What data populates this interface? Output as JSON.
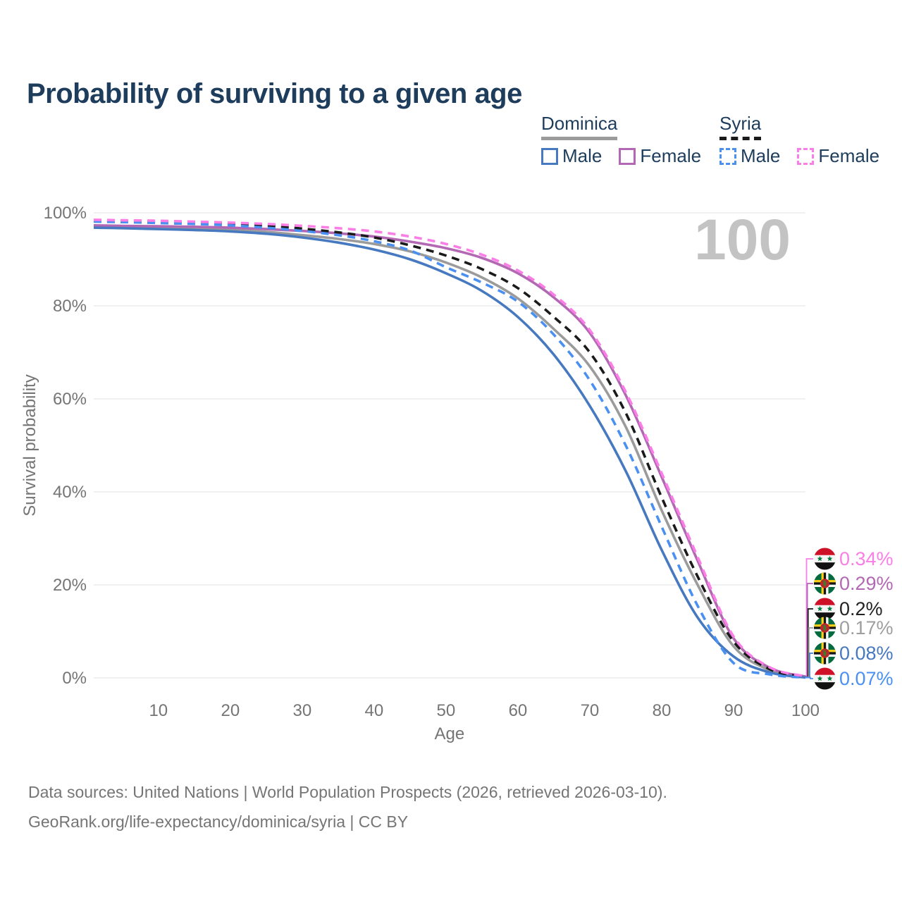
{
  "title": "Probability of surviving to a given age",
  "watermark": "100",
  "colors": {
    "title_text": "#1e3d5c",
    "axis_text": "#757575",
    "gridline": "#e8e8e8",
    "watermark": "#c3c3c3",
    "dominica_male": "#4679bf",
    "dominica_female": "#b368b4",
    "dominica_both": "#9b9b9b",
    "syria_male": "#4a90f2",
    "syria_female": "#fb7de6",
    "syria_both": "#1a1a1a"
  },
  "legend": {
    "groups": [
      {
        "name": "Dominica",
        "line_style": "solid",
        "underline_color": "#9b9b9b",
        "items": [
          {
            "label": "Male",
            "color": "#4679bf",
            "dash": false
          },
          {
            "label": "Female",
            "color": "#b368b4",
            "dash": false
          }
        ]
      },
      {
        "name": "Syria",
        "line_style": "dashed",
        "underline_color": "#1a1a1a",
        "items": [
          {
            "label": "Male",
            "color": "#4a90f2",
            "dash": true
          },
          {
            "label": "Female",
            "color": "#fb7de6",
            "dash": true
          }
        ]
      }
    ]
  },
  "chart_data": {
    "type": "line",
    "title": "Probability of surviving to a given age",
    "xlabel": "Age",
    "ylabel": "Survival probability",
    "xlim": [
      1,
      100
    ],
    "ylim": [
      0,
      100
    ],
    "x_ticks": [
      10,
      20,
      30,
      40,
      50,
      60,
      70,
      80,
      90,
      100
    ],
    "y_ticks": [
      0,
      20,
      40,
      60,
      80,
      100
    ],
    "y_tick_suffix": "%",
    "grid": "horizontal",
    "age_cursor": "100",
    "x": [
      1,
      5,
      10,
      15,
      20,
      25,
      30,
      35,
      40,
      45,
      50,
      55,
      60,
      65,
      70,
      75,
      80,
      85,
      90,
      95,
      100
    ],
    "series": [
      {
        "name": "Dominica (both sexes)",
        "country": "Dominica",
        "sex": "Both",
        "style": "solid",
        "color": "#9b9b9b",
        "label_color": "#9e9e9e",
        "end_label": "0.17%",
        "values": [
          97.1,
          97.0,
          96.8,
          96.6,
          96.3,
          95.9,
          95.2,
          94.4,
          93.3,
          91.7,
          89.3,
          86.1,
          81.6,
          75.0,
          67.0,
          54.0,
          36.0,
          20.0,
          6.8,
          1.7,
          0.17
        ]
      },
      {
        "name": "Dominica Female",
        "country": "Dominica",
        "sex": "Female",
        "style": "solid",
        "color": "#b368b4",
        "label_color": "#b368b4",
        "end_label": "0.29%",
        "values": [
          97.3,
          97.2,
          97.1,
          97.0,
          96.8,
          96.5,
          96.1,
          95.6,
          94.9,
          93.8,
          92.4,
          90.3,
          87.0,
          81.8,
          74.2,
          60.8,
          43.2,
          25.2,
          8.5,
          2.2,
          0.29
        ]
      },
      {
        "name": "Dominica Male",
        "country": "Dominica",
        "sex": "Male",
        "style": "solid",
        "color": "#4679bf",
        "label_color": "#4679bf",
        "end_label": "0.08%",
        "values": [
          96.8,
          96.7,
          96.5,
          96.3,
          96.0,
          95.5,
          94.7,
          93.6,
          92.1,
          90.0,
          87.0,
          83.2,
          77.6,
          69.5,
          58.5,
          44.5,
          27.5,
          13.0,
          4.6,
          1.2,
          0.08
        ]
      },
      {
        "name": "Syria (both sexes)",
        "country": "Syria",
        "sex": "Both",
        "style": "dashed",
        "color": "#1a1a1a",
        "label_color": "#222222",
        "end_label": "0.2%",
        "values": [
          98.3,
          98.2,
          98.1,
          97.9,
          97.7,
          97.3,
          96.6,
          95.8,
          94.7,
          93.0,
          90.8,
          87.9,
          83.8,
          77.6,
          70.0,
          57.0,
          38.8,
          21.8,
          7.8,
          1.9,
          0.2
        ]
      },
      {
        "name": "Syria Male",
        "country": "Syria",
        "sex": "Male",
        "style": "dashed",
        "color": "#4a90f2",
        "label_color": "#4a90f2",
        "end_label": "0.07%",
        "values": [
          98.1,
          98.0,
          97.8,
          97.6,
          97.3,
          96.8,
          96.1,
          95.2,
          93.9,
          91.9,
          88.3,
          85.0,
          80.9,
          73.8,
          64.0,
          50.0,
          32.5,
          15.5,
          3.2,
          0.75,
          0.07
        ]
      },
      {
        "name": "Syria Female",
        "country": "Syria",
        "sex": "Female",
        "style": "dashed",
        "color": "#fb7de6",
        "label_color": "#fb7de6",
        "end_label": "0.34%",
        "values": [
          98.5,
          98.4,
          98.3,
          98.1,
          97.9,
          97.6,
          97.2,
          96.7,
          96.0,
          94.9,
          93.3,
          91.0,
          87.6,
          82.4,
          74.8,
          61.5,
          44.0,
          26.0,
          8.9,
          2.3,
          0.34
        ]
      }
    ],
    "end_label_ys": [
      793,
      828,
      864,
      891,
      927,
      963
    ]
  },
  "footer": {
    "line1": "Data sources: United Nations | World Population Prospects (2026, retrieved 2026-03-10).",
    "line2": "GeoRank.org/life-expectancy/dominica/syria | CC BY"
  }
}
